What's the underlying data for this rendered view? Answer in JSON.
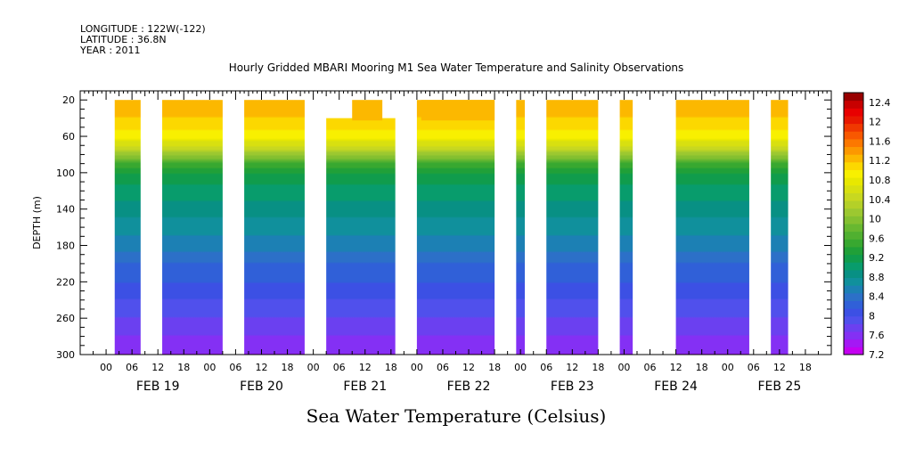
{
  "header": {
    "longitude": "LONGITUDE : 122W(-122)",
    "latitude": "LATITUDE : 36.8N",
    "year": "YEAR : 2011"
  },
  "chart_data": {
    "type": "heatmap",
    "title": "Hourly Gridded MBARI Mooring M1 Sea Water Temperature and Salinity Observations",
    "ylabel": "DEPTH (m)",
    "xlabel": "",
    "units_caption": "Sea Water Temperature (Celsius)",
    "x_hours_range": [
      -6,
      168
    ],
    "y_depth_range": [
      10,
      300
    ],
    "y_axis_inverted": true,
    "y_ticks": [
      20,
      60,
      100,
      140,
      180,
      220,
      260,
      300
    ],
    "x_hour_tick_labels": [
      "00",
      "06",
      "12",
      "18",
      "00",
      "06",
      "12",
      "18",
      "00",
      "06",
      "12",
      "18",
      "00",
      "06",
      "12",
      "18",
      "00",
      "06",
      "12",
      "18",
      "00",
      "06",
      "12",
      "18",
      "00",
      "06",
      "12",
      "18"
    ],
    "day_labels": [
      {
        "label": "FEB 19",
        "hour": 0
      },
      {
        "label": "FEB 20",
        "hour": 24
      },
      {
        "label": "FEB 21",
        "hour": 48
      },
      {
        "label": "FEB 22",
        "hour": 72
      },
      {
        "label": "FEB 23",
        "hour": 96
      },
      {
        "label": "FEB 24",
        "hour": 120
      },
      {
        "label": "FEB 25",
        "hour": 144
      }
    ],
    "data_segments": [
      {
        "start_hour": 2,
        "end_hour": 8,
        "top_depth": 20
      },
      {
        "start_hour": 13,
        "end_hour": 27,
        "top_depth": 20
      },
      {
        "start_hour": 32,
        "end_hour": 46,
        "top_depth": 20
      },
      {
        "start_hour": 51,
        "end_hour": 67,
        "top_depth": 40
      },
      {
        "start_hour": 72,
        "end_hour": 90,
        "top_depth": 20
      },
      {
        "start_hour": 95,
        "end_hour": 97,
        "top_depth": 20
      },
      {
        "start_hour": 102,
        "end_hour": 114,
        "top_depth": 20
      },
      {
        "start_hour": 119,
        "end_hour": 122,
        "top_depth": 20
      },
      {
        "start_hour": 132,
        "end_hour": 149,
        "top_depth": 20
      },
      {
        "start_hour": 154,
        "end_hour": 158,
        "top_depth": 20
      }
    ],
    "surface_protrusions": [
      {
        "start_hour": 57,
        "end_hour": 64,
        "top_depth": 20
      },
      {
        "start_hour": 73,
        "end_hour": 90,
        "top_depth": 20
      }
    ],
    "temperature_profile": [
      {
        "depth": 20,
        "temp": 12.3
      },
      {
        "depth": 40,
        "temp": 12.2
      },
      {
        "depth": 60,
        "temp": 11.9
      },
      {
        "depth": 70,
        "temp": 11.4
      },
      {
        "depth": 80,
        "temp": 10.9
      },
      {
        "depth": 90,
        "temp": 10.2
      },
      {
        "depth": 100,
        "temp": 9.8
      },
      {
        "depth": 120,
        "temp": 9.5
      },
      {
        "depth": 140,
        "temp": 9.3
      },
      {
        "depth": 160,
        "temp": 9.1
      },
      {
        "depth": 180,
        "temp": 8.9
      },
      {
        "depth": 200,
        "temp": 8.6
      },
      {
        "depth": 220,
        "temp": 8.4
      },
      {
        "depth": 240,
        "temp": 8.2
      },
      {
        "depth": 260,
        "temp": 8.0
      },
      {
        "depth": 280,
        "temp": 7.8
      },
      {
        "depth": 300,
        "temp": 7.6
      }
    ],
    "colorbar": {
      "min": 7.2,
      "max": 12.6,
      "step": 0.2,
      "tick_labels": [
        "12.4",
        "12",
        "11.6",
        "11.2",
        "10.8",
        "10.4",
        "10",
        "9.6",
        "9.2",
        "8.8",
        "8.4",
        "8",
        "7.6",
        "7.2"
      ],
      "colors_low_to_high": [
        "#c400f0",
        "#a418f4",
        "#8430f4",
        "#6b40f0",
        "#5050ec",
        "#3c50e4",
        "#3060d8",
        "#2c70c8",
        "#1c80b4",
        "#10909c",
        "#089084",
        "#089c6c",
        "#109c4c",
        "#20a038",
        "#38a830",
        "#50b030",
        "#68b830",
        "#84c030",
        "#9cc830",
        "#b4d028",
        "#c8d820",
        "#d8e010",
        "#e8e800",
        "#f8f000",
        "#fcd800",
        "#fcb800",
        "#fc9800",
        "#fc7800",
        "#f85800",
        "#f03800",
        "#e81800",
        "#e80000",
        "#c80000",
        "#980000"
      ]
    }
  }
}
